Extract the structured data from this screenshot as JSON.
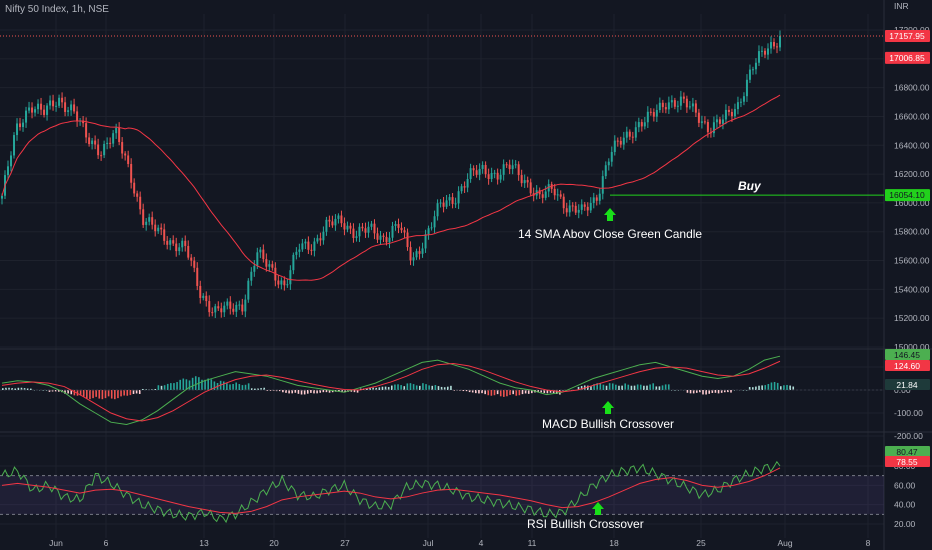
{
  "header": {
    "title": "Nifty 50 Index, 1h, NSE",
    "currency": "INR"
  },
  "colors": {
    "background": "#131722",
    "grid": "#1e222d",
    "up": "#26a69a",
    "down": "#ef5350",
    "sma": "#f23645",
    "green_line": "#4caf50",
    "red_line": "#f23645",
    "buy_line": "#22d11c",
    "arrow": "#19e019",
    "rsi_band": "#7e57c2"
  },
  "chart_data": [
    {
      "type": "candlestick",
      "title": "Nifty 50 Index, 1h, NSE",
      "ylim": [
        15000,
        17300
      ],
      "y_ticks": [
        "17200.00",
        "17000.00",
        "16800.00",
        "16600.00",
        "16400.00",
        "16200.00",
        "16000.00",
        "15800.00",
        "15600.00",
        "15400.00",
        "15200.00",
        "15000.00"
      ],
      "x_ticks": [
        "Jun",
        "6",
        "13",
        "20",
        "27",
        "Jul",
        "4",
        "11",
        "18",
        "25",
        "Aug",
        "8"
      ],
      "price_points": [
        [
          "Jun 1",
          16050
        ],
        [
          "Jun 2",
          16500
        ],
        [
          "Jun 3",
          16690
        ],
        [
          "Jun 4",
          16620
        ],
        [
          "Jun 5",
          16720
        ],
        [
          "Jun 6",
          16650
        ],
        [
          "Jun 7",
          16440
        ],
        [
          "Jun 8",
          16370
        ],
        [
          "Jun 9",
          16480
        ],
        [
          "Jun 10",
          16230
        ],
        [
          "Jun 12",
          15880
        ],
        [
          "Jun 13",
          15800
        ],
        [
          "Jun 14",
          15730
        ],
        [
          "Jun 15",
          15680
        ],
        [
          "Jun 16",
          15380
        ],
        [
          "Jun 17",
          15250
        ],
        [
          "Jun 19",
          15260
        ],
        [
          "Jun 20",
          15300
        ],
        [
          "Jun 21",
          15640
        ],
        [
          "Jun 22",
          15550
        ],
        [
          "Jun 23",
          15420
        ],
        [
          "Jun 24",
          15690
        ],
        [
          "Jun 25",
          15720
        ],
        [
          "Jun 26",
          15840
        ],
        [
          "Jun 27",
          15880
        ],
        [
          "Jun 28",
          15790
        ],
        [
          "Jun 29",
          15810
        ],
        [
          "Jun 30",
          15760
        ],
        [
          "Jul 1",
          15850
        ],
        [
          "Jul 3",
          15600
        ],
        [
          "Jul 4",
          15780
        ],
        [
          "Jul 5",
          15980
        ],
        [
          "Jul 6",
          16040
        ],
        [
          "Jul 7",
          16180
        ],
        [
          "Jul 8",
          16230
        ],
        [
          "Jul 10",
          16200
        ],
        [
          "Jul 11",
          16250
        ],
        [
          "Jul 12",
          16160
        ],
        [
          "Jul 13",
          16030
        ],
        [
          "Jul 14",
          16100
        ],
        [
          "Jul 15",
          15970
        ],
        [
          "Jul 16",
          15930
        ],
        [
          "Jul 17",
          16040
        ],
        [
          "Jul 18",
          16340
        ],
        [
          "Jul 19",
          16450
        ],
        [
          "Jul 20",
          16550
        ],
        [
          "Jul 21",
          16600
        ],
        [
          "Jul 22",
          16710
        ],
        [
          "Jul 24",
          16700
        ],
        [
          "Jul 25",
          16630
        ],
        [
          "Jul 26",
          16520
        ],
        [
          "Jul 27",
          16570
        ],
        [
          "Jul 28",
          16680
        ],
        [
          "Jul 29",
          16930
        ],
        [
          "Jul 30",
          17060
        ],
        [
          "Jul 31",
          17158
        ]
      ],
      "sma_period": 14,
      "price_tags": [
        {
          "label": "17157.95",
          "value": 17157.95,
          "color": "#f23645"
        },
        {
          "label": "17006.85",
          "value": 17006.85,
          "color": "#f23645"
        },
        {
          "label": "16054.10",
          "value": 16054.1,
          "color": "#22d11c"
        }
      ],
      "annotations": [
        {
          "text": "Buy",
          "style": "italic-bold"
        },
        {
          "text": "14 SMA Abov Close Green Candle"
        }
      ],
      "buy_level": 16054.1
    },
    {
      "type": "macd",
      "ylim": [
        -200,
        150
      ],
      "y_ticks": [
        "100.00",
        "0.00",
        "-100.00",
        "-200.00"
      ],
      "series": [
        {
          "name": "MACD",
          "values": [
            30,
            40,
            35,
            20,
            -10,
            -60,
            -100,
            -140,
            -150,
            -130,
            -90,
            -40,
            10,
            40,
            60,
            80,
            70,
            60,
            40,
            20,
            10,
            0,
            -10,
            10,
            30,
            60,
            90,
            120,
            130,
            110,
            90,
            60,
            30,
            10,
            0,
            -20,
            -10,
            20,
            50,
            70,
            90,
            110,
            120,
            100,
            80,
            60,
            50,
            60,
            90,
            130,
            147
          ]
        },
        {
          "name": "Signal",
          "values": [
            20,
            30,
            35,
            30,
            15,
            -20,
            -60,
            -100,
            -125,
            -135,
            -120,
            -90,
            -50,
            -10,
            20,
            45,
            60,
            65,
            55,
            40,
            25,
            12,
            2,
            0,
            15,
            35,
            60,
            90,
            110,
            115,
            105,
            85,
            60,
            35,
            15,
            0,
            -8,
            0,
            20,
            40,
            60,
            80,
            95,
            100,
            95,
            80,
            65,
            60,
            70,
            95,
            125
          ]
        }
      ],
      "histogram": [
        10,
        10,
        0,
        -10,
        -25,
        -40,
        -40,
        -40,
        -25,
        5,
        30,
        50,
        60,
        50,
        40,
        35,
        10,
        -5,
        -15,
        -20,
        -15,
        -12,
        -12,
        10,
        15,
        25,
        30,
        30,
        20,
        -5,
        -15,
        -25,
        -30,
        -25,
        -15,
        -20,
        -2,
        20,
        30,
        30,
        30,
        30,
        25,
        0,
        -15,
        -20,
        -15,
        0,
        20,
        35,
        22
      ],
      "value_tags": [
        {
          "label": "146.45",
          "color": "#4caf50"
        },
        {
          "label": "124.60",
          "color": "#f23645"
        },
        {
          "label": "21.84",
          "color": "#1e3a3a"
        }
      ],
      "annotations": [
        {
          "text": "MACD Bullish Crossover"
        }
      ]
    },
    {
      "type": "rsi",
      "ylim": [
        20,
        90
      ],
      "y_ticks": [
        "80.00",
        "60.00",
        "40.00",
        "20.00"
      ],
      "bands": [
        70,
        30
      ],
      "series": [
        {
          "name": "RSI",
          "values": [
            70,
            75,
            55,
            60,
            48,
            45,
            70,
            62,
            50,
            40,
            35,
            30,
            28,
            32,
            25,
            30,
            42,
            55,
            65,
            50,
            48,
            55,
            60,
            45,
            38,
            40,
            58,
            62,
            60,
            55,
            48,
            45,
            42,
            38,
            35,
            30,
            32,
            45,
            60,
            70,
            75,
            78,
            72,
            65,
            58,
            50,
            55,
            65,
            72,
            78,
            80
          ]
        },
        {
          "name": "RSI MA",
          "values": [
            60,
            62,
            60,
            58,
            55,
            52,
            55,
            56,
            54,
            50,
            46,
            42,
            38,
            35,
            32,
            31,
            33,
            38,
            45,
            48,
            50,
            52,
            54,
            52,
            48,
            46,
            48,
            52,
            55,
            56,
            54,
            52,
            50,
            47,
            44,
            40,
            37,
            38,
            42,
            48,
            55,
            62,
            66,
            68,
            65,
            60,
            58,
            60,
            64,
            70,
            78
          ]
        }
      ],
      "value_tags": [
        {
          "label": "80.47",
          "color": "#4caf50"
        },
        {
          "label": "78.55",
          "color": "#f23645"
        }
      ],
      "annotations": [
        {
          "text": "RSI Bullish Crossover"
        }
      ]
    }
  ]
}
